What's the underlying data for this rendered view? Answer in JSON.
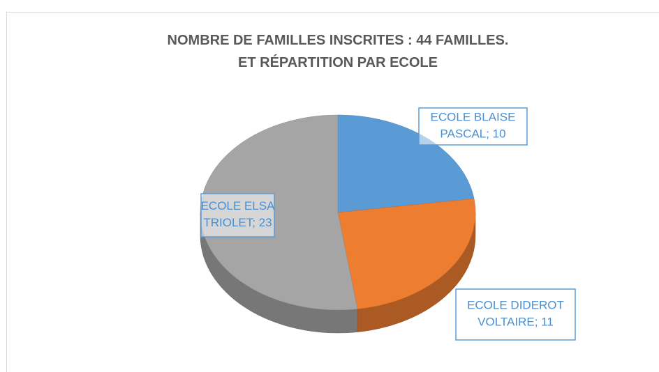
{
  "chart_data": {
    "type": "pie3d",
    "title": [
      "NOMBRE DE FAMILLES INSCRITES  : 44 FAMILLES.",
      "ET RÉPARTITION PAR ECOLE"
    ],
    "categories": [
      "ECOLE BLAISE PASCAL",
      "ECOLE DIDEROT VOLTAIRE",
      "ECOLE ELSA TRIOLET"
    ],
    "values": [
      10,
      11,
      23
    ],
    "value_labels": [
      "ECOLE BLAISE PASCAL; 10",
      "ECOLE DIDEROT VOLTAIRE; 11",
      "ECOLE ELSA TRIOLET; 23"
    ],
    "colors": [
      "#5b9bd5",
      "#ed7d31",
      "#a5a5a5"
    ]
  }
}
